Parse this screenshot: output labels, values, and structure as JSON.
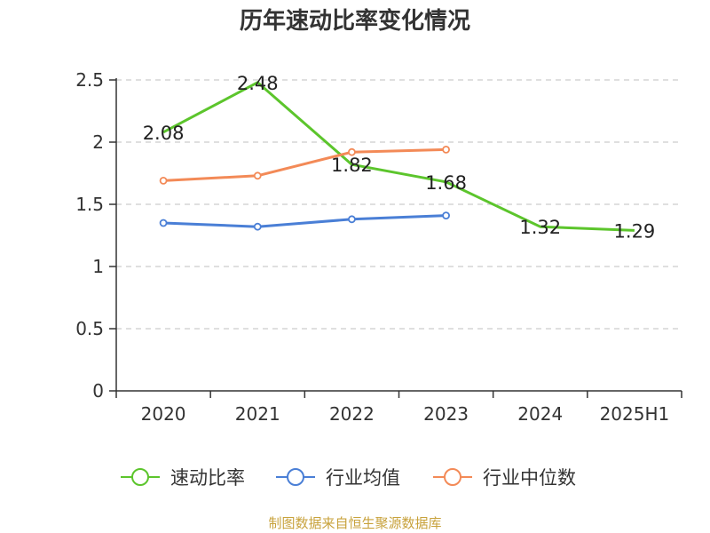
{
  "title": "历年速动比率变化情况",
  "source": "制图数据来自恒生聚源数据库",
  "chart_data": {
    "type": "line",
    "title": "历年速动比率变化情况",
    "categories": [
      "2020",
      "2021",
      "2022",
      "2023",
      "2024",
      "2025H1"
    ],
    "ylim": [
      0,
      2.5
    ],
    "yticks": [
      "0",
      "0.5",
      "1",
      "1.5",
      "2",
      "2.5"
    ],
    "grid": true,
    "legend_position": "bottom",
    "series": [
      {
        "name": "速动比率",
        "color": "#5cc52c",
        "values": [
          2.08,
          2.48,
          1.82,
          1.68,
          1.32,
          1.29
        ],
        "labels": [
          "2.08",
          "2.48",
          "1.82",
          "1.68",
          "1.32",
          "1.29"
        ],
        "markers": false
      },
      {
        "name": "行业均值",
        "color": "#4a7fd6",
        "values": [
          1.35,
          1.32,
          1.38,
          1.41,
          null,
          null
        ],
        "markers": true
      },
      {
        "name": "行业中位数",
        "color": "#f38a57",
        "values": [
          1.69,
          1.73,
          1.92,
          1.94,
          null,
          null
        ],
        "markers": true
      }
    ]
  }
}
